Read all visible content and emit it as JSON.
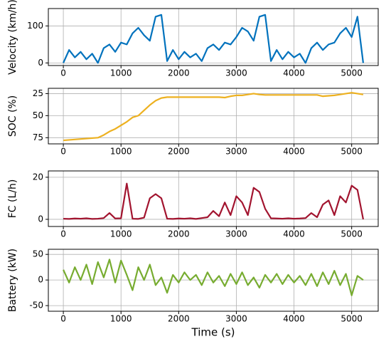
{
  "chart_data": [
    {
      "type": "line",
      "ylabel": "Velocity (km/h)",
      "color": "#0072bd",
      "grid": true,
      "xlim": [
        -260,
        5460
      ],
      "ylim": [
        -7,
        147
      ],
      "xticks": [
        0,
        1000,
        2000,
        3000,
        4000,
        5000
      ],
      "yticks": [
        0,
        100
      ],
      "x": [
        0,
        100,
        200,
        300,
        400,
        500,
        600,
        700,
        800,
        900,
        1000,
        1100,
        1200,
        1300,
        1400,
        1500,
        1600,
        1700,
        1800,
        1900,
        2000,
        2100,
        2200,
        2300,
        2400,
        2500,
        2600,
        2700,
        2800,
        2900,
        3000,
        3100,
        3200,
        3300,
        3400,
        3500,
        3600,
        3700,
        3800,
        3900,
        4000,
        4100,
        4200,
        4300,
        4400,
        4500,
        4600,
        4700,
        4800,
        4900,
        5000,
        5100,
        5200
      ],
      "values": [
        0,
        35,
        15,
        30,
        10,
        25,
        0,
        40,
        50,
        30,
        55,
        50,
        80,
        95,
        75,
        60,
        125,
        130,
        5,
        35,
        10,
        30,
        15,
        25,
        5,
        40,
        50,
        35,
        55,
        50,
        70,
        95,
        85,
        60,
        125,
        130,
        5,
        35,
        10,
        30,
        15,
        25,
        0,
        40,
        55,
        35,
        50,
        55,
        80,
        95,
        70,
        125,
        0
      ]
    },
    {
      "type": "line",
      "ylabel": "SOC (%)",
      "color": "#edb120",
      "grid": true,
      "xlim": [
        -260,
        5460
      ],
      "ylim": [
        82,
        19
      ],
      "xticks": [
        0,
        1000,
        2000,
        3000,
        4000,
        5000
      ],
      "yticks": [
        25,
        50,
        75
      ],
      "x": [
        0,
        100,
        200,
        300,
        400,
        500,
        600,
        700,
        800,
        900,
        1000,
        1100,
        1200,
        1300,
        1400,
        1500,
        1600,
        1700,
        1800,
        1900,
        2000,
        2100,
        2200,
        2300,
        2400,
        2500,
        2600,
        2700,
        2800,
        2900,
        3000,
        3100,
        3200,
        3300,
        3400,
        3500,
        3600,
        3700,
        3800,
        3900,
        4000,
        4100,
        4200,
        4300,
        4400,
        4500,
        4600,
        4700,
        4800,
        4900,
        5000,
        5100,
        5200
      ],
      "values": [
        78,
        77.5,
        77,
        76.5,
        76,
        75.5,
        75,
        72,
        68,
        65,
        61,
        57,
        52,
        50,
        44,
        38,
        33,
        30,
        29,
        29,
        29,
        29,
        29,
        29,
        29,
        29,
        29,
        29,
        29.5,
        28,
        27,
        27,
        26,
        25,
        26,
        26.5,
        26.5,
        26.5,
        26.5,
        26.5,
        26.5,
        26.5,
        26.5,
        26.5,
        26.5,
        28,
        27.5,
        27,
        26,
        25,
        24,
        25,
        26
      ]
    },
    {
      "type": "line",
      "ylabel": "FC (L/h)",
      "color": "#a2142f",
      "grid": true,
      "xlim": [
        -260,
        5460
      ],
      "ylim": [
        -3.4,
        23
      ],
      "xticks": [
        0,
        1000,
        2000,
        3000,
        4000,
        5000
      ],
      "yticks": [
        0,
        20
      ],
      "x": [
        0,
        100,
        200,
        300,
        400,
        500,
        600,
        700,
        800,
        900,
        1000,
        1100,
        1200,
        1300,
        1400,
        1500,
        1600,
        1700,
        1800,
        1900,
        2000,
        2100,
        2200,
        2300,
        2400,
        2500,
        2600,
        2700,
        2800,
        2900,
        3000,
        3100,
        3200,
        3300,
        3400,
        3500,
        3600,
        3700,
        3800,
        3900,
        4000,
        4100,
        4200,
        4300,
        4400,
        4500,
        4600,
        4700,
        4800,
        4900,
        5000,
        5100,
        5200
      ],
      "values": [
        0.3,
        0.2,
        0.4,
        0.3,
        0.5,
        0.2,
        0.3,
        0.6,
        3,
        0.4,
        0.5,
        17,
        0.3,
        0.2,
        0.8,
        10,
        12,
        10,
        0.3,
        0.2,
        0.4,
        0.3,
        0.5,
        0.2,
        0.6,
        1,
        4,
        1.5,
        8,
        2,
        11,
        8,
        2,
        15,
        13,
        5,
        0.5,
        0.4,
        0.3,
        0.5,
        0.3,
        0.4,
        0.6,
        3,
        1,
        7,
        9,
        2,
        11,
        8,
        16,
        14,
        0
      ]
    },
    {
      "type": "line",
      "ylabel": "Battery (kW)",
      "xlabel": "Time (s)",
      "color": "#77ac30",
      "grid": true,
      "xlim": [
        -260,
        5460
      ],
      "ylim": [
        -61,
        60
      ],
      "xticks": [
        0,
        1000,
        2000,
        3000,
        4000,
        5000
      ],
      "yticks": [
        -50,
        0,
        50
      ],
      "x": [
        0,
        100,
        200,
        300,
        400,
        500,
        600,
        700,
        800,
        900,
        1000,
        1100,
        1200,
        1300,
        1400,
        1500,
        1600,
        1700,
        1800,
        1900,
        2000,
        2100,
        2200,
        2300,
        2400,
        2500,
        2600,
        2700,
        2800,
        2900,
        3000,
        3100,
        3200,
        3300,
        3400,
        3500,
        3600,
        3700,
        3800,
        3900,
        4000,
        4100,
        4200,
        4300,
        4400,
        4500,
        4600,
        4700,
        4800,
        4900,
        5000,
        5100,
        5200
      ],
      "values": [
        20,
        -5,
        25,
        0,
        30,
        -8,
        35,
        5,
        40,
        -5,
        38,
        10,
        -20,
        25,
        0,
        30,
        -10,
        5,
        -25,
        10,
        -5,
        15,
        0,
        10,
        -10,
        15,
        -5,
        8,
        -12,
        12,
        -8,
        15,
        -10,
        5,
        -15,
        10,
        -5,
        12,
        -8,
        10,
        -5,
        8,
        -10,
        12,
        -12,
        15,
        -8,
        18,
        -10,
        12,
        -30,
        8,
        0
      ]
    }
  ]
}
